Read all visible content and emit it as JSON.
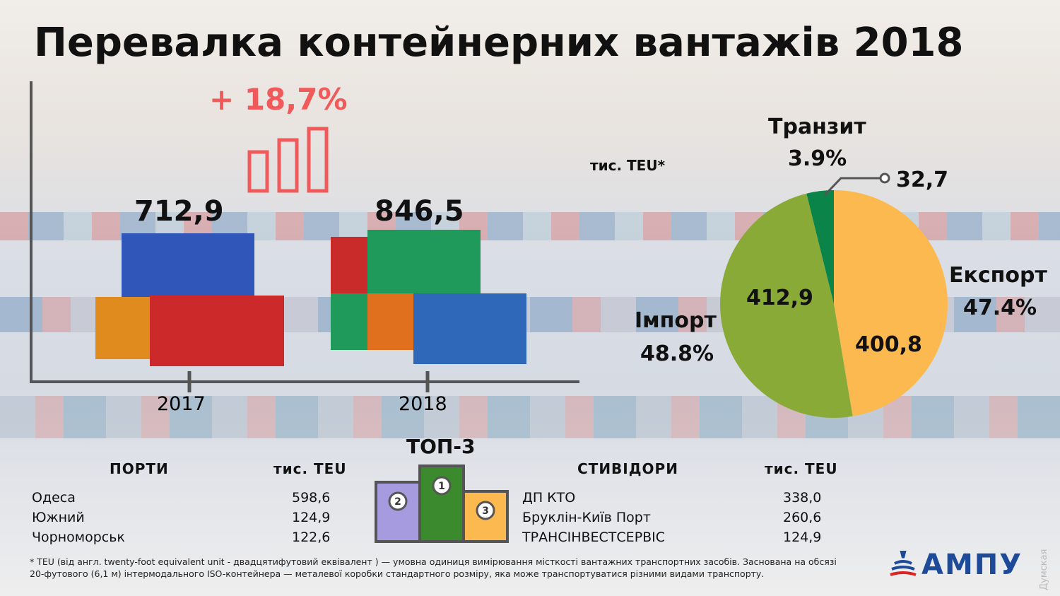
{
  "title": "Перевалка контейнерних вантажів 2018",
  "growth": "+ 18,7%",
  "colors": {
    "growth": "#f05a5a",
    "export": "#fbb94f",
    "import": "#8aaa38",
    "transit": "#0a8448",
    "brand": "#1e4a9a"
  },
  "chart_data": [
    {
      "type": "bar",
      "categories": [
        "2017",
        "2018"
      ],
      "values": [
        712.9,
        846.5
      ],
      "data_labels": [
        "712,9",
        "846,5"
      ],
      "unit_note": "",
      "growth_label": "+ 18,7%"
    },
    {
      "type": "pie",
      "unit": "тис. TEU*",
      "slices": [
        {
          "name": "Експорт",
          "value": 400.8,
          "value_label": "400,8",
          "percent": "47.4%",
          "color": "#fbb94f"
        },
        {
          "name": "Імпорт",
          "value": 412.9,
          "value_label": "412,9",
          "percent": "48.8%",
          "color": "#8aaa38"
        },
        {
          "name": "Транзит",
          "value": 32.7,
          "value_label": "32,7",
          "percent": "3.9%",
          "color": "#0a8448"
        }
      ]
    }
  ],
  "top3": {
    "title": "ТОП-3",
    "places": [
      "1",
      "2",
      "3"
    ]
  },
  "ports": {
    "header": "ПОРТИ",
    "unit": "тис. TEU",
    "rows": [
      [
        "Одеса",
        "598,6"
      ],
      [
        "Южний",
        "124,9"
      ],
      [
        "Чорноморськ",
        "122,6"
      ]
    ]
  },
  "stevedores": {
    "header": "СТИВІДОРИ",
    "unit": "тис. TEU",
    "rows": [
      [
        "ДП КТО",
        "338,0"
      ],
      [
        "Бруклін-Київ Порт",
        "260,6"
      ],
      [
        "ТРАНСІНВЕСТСЕРВІС",
        "124,9"
      ]
    ]
  },
  "footnote": [
    "* TEU (від англ. twenty-foot equivalent unit - двадцятифутовий еквівалент ) — умовна одиниця вимірювання місткості вантажних транспортних засобів. Заснована на обсязі",
    "20-футового (6,1 м) інтермодального ISO-контейнера — металевої коробки стандартного розміру, яка може транспортуватися різними видами транспорту."
  ],
  "logo": "АМПУ",
  "watermark": "Думская"
}
